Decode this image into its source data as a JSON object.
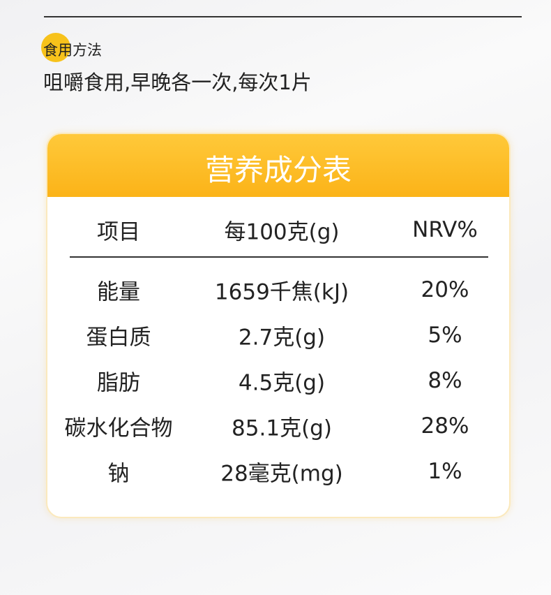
{
  "usage": {
    "label": "食用方法",
    "text": "咀嚼食用,早晚各一次,每次1片"
  },
  "table": {
    "title": "营养成分表",
    "columns": [
      "项目",
      "每100克(g)",
      "NRV%"
    ],
    "rows": [
      [
        "能量",
        "1659千焦(kJ)",
        "20%"
      ],
      [
        "蛋白质",
        "2.7克(g)",
        "5%"
      ],
      [
        "脂肪",
        "4.5克(g)",
        "8%"
      ],
      [
        "碳水化合物",
        "85.1克(g)",
        "28%"
      ],
      [
        "钠",
        "28毫克(mg)",
        "1%"
      ]
    ]
  }
}
